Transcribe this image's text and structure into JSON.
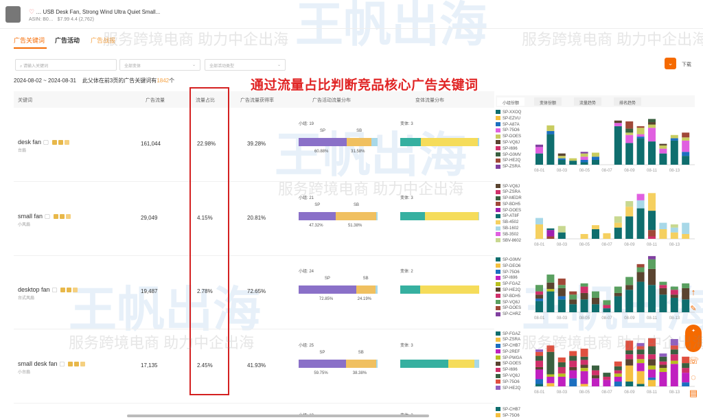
{
  "product": {
    "title": "… USB Desk Fan, Strong Wind Ultra Quiet Small...",
    "asin_label": "ASIN: B0…",
    "price_rating": "$7.99 4.4 (2,762)"
  },
  "tabs": [
    "广告关键词",
    "广告活动",
    "广告战报"
  ],
  "filters": {
    "search_placeholder": "请输入关键词",
    "variant": "全部变体",
    "campaign_type": "全部活动类型"
  },
  "download_label": "下载",
  "summary": {
    "date_range": "2024-08-02 ~ 2024-08-31",
    "text_before": "此父体在前3页的广告关键词有",
    "count": "1842",
    "text_after": "个"
  },
  "annotation": "通过流量占比判断竞品核心广告关键词",
  "columns": [
    "关键词",
    "广告流量",
    "流量占比",
    "广告流量获得率",
    "广告活动流量分布",
    "变体流量分布"
  ],
  "chart_tabs": [
    "小组份额",
    "变体份额",
    "流量趋势",
    "排名趋势"
  ],
  "colors": {
    "accent": "#f56a00",
    "sp": "#8a70c8",
    "sb": "#f0c060",
    "variant_a": "#36b0a0",
    "variant_b": "#f5dc5a",
    "variant_c": "#a8d8e8",
    "highlight": "#d42020"
  },
  "rows": [
    {
      "keyword": "desk fan",
      "sub": "台扇",
      "traffic": "161,044",
      "share": "22.98%",
      "rate": "39.28%",
      "groups": "小组: 19",
      "sp": 60.88,
      "sb": 31.58,
      "sp_label": "60.88%",
      "sb_label": "31.58%",
      "variants": "变体: 3",
      "vshare": [
        26,
        72,
        2
      ]
    },
    {
      "keyword": "small fan",
      "sub": "小风扇",
      "traffic": "29,049",
      "share": "4.15%",
      "rate": "20.81%",
      "groups": "小组: 21",
      "sp": 47.32,
      "sb": 51.38,
      "sp_label": "47.32%",
      "sb_label": "51.38%",
      "variants": "变体: 3",
      "vshare": [
        31,
        68,
        1
      ]
    },
    {
      "keyword": "desktop fan",
      "sub": "台式风扇",
      "traffic": "19,487",
      "share": "2.78%",
      "rate": "72.65%",
      "groups": "小组: 24",
      "sp": 72.85,
      "sb": 24.19,
      "sp_label": "72.85%",
      "sb_label": "24.19%",
      "variants": "变体: 2",
      "vshare": [
        25,
        75,
        0
      ]
    },
    {
      "keyword": "small desk fan",
      "sub": "小台扇",
      "traffic": "17,135",
      "share": "2.45%",
      "rate": "41.93%",
      "groups": "小组: 25",
      "sp": 59.75,
      "sb": 38.38,
      "sp_label": "59.75%",
      "sb_label": "38.38%",
      "variants": "变体: 3",
      "vshare": [
        61,
        33,
        6
      ]
    }
  ],
  "partial_row": {
    "groups": "小组: 19",
    "variants": "变体: 3",
    "legend": [
      "SP-CHB7",
      "SP-75O6"
    ]
  },
  "chart_data": [
    {
      "type": "bar",
      "stacked": true,
      "x": [
        "08-01",
        "08-02",
        "08-03",
        "08-04",
        "08-05",
        "08-06",
        "08-07",
        "08-08",
        "08-09",
        "08-10",
        "08-11",
        "08-12",
        "08-13",
        "08-14"
      ],
      "xticks": [
        "08-01",
        "08-03",
        "08-05",
        "08-07",
        "08-09",
        "08-11",
        "08-13"
      ],
      "legend": [
        "SP-XXOQ",
        "SP-EZVU",
        "SP-A87A",
        "SP-75O6",
        "SP-DOES",
        "SP-VQ8J",
        "SP-I696",
        "SP-G0MV",
        "SP-HE2Q",
        "SP-ZSRA"
      ],
      "palette": [
        "#0f6e6e",
        "#f5c040",
        "#1c6fc0",
        "#e060e0",
        "#c8cc60",
        "#5a4430",
        "#d0306a",
        "#3a6040",
        "#a04838",
        "#8040a0"
      ],
      "stacks": [
        [
          14,
          0,
          0,
          8,
          0,
          0,
          0,
          0,
          0,
          3
        ],
        [
          38,
          0,
          4,
          0,
          7,
          0,
          0,
          0,
          0,
          0
        ],
        [
          6,
          0,
          2,
          0,
          3,
          3,
          0,
          0,
          0,
          0
        ],
        [
          5,
          0,
          0,
          0,
          3,
          0,
          0,
          0,
          0,
          0
        ],
        [
          3,
          0,
          3,
          4,
          4,
          0,
          0,
          0,
          0,
          2
        ],
        [
          6,
          0,
          4,
          0,
          5,
          0,
          0,
          0,
          0,
          0
        ],
        [
          0,
          0,
          0,
          0,
          0,
          0,
          0,
          0,
          0,
          0
        ],
        [
          48,
          0,
          0,
          4,
          0,
          3,
          0,
          0,
          0,
          0
        ],
        [
          27,
          0,
          0,
          10,
          3,
          0,
          0,
          5,
          9,
          0
        ],
        [
          33,
          0,
          2,
          3,
          8,
          0,
          0,
          0,
          2,
          0
        ],
        [
          29,
          0,
          0,
          17,
          4,
          3,
          0,
          4,
          0,
          0
        ],
        [
          14,
          0,
          0,
          6,
          4,
          2,
          0,
          0,
          0,
          0
        ],
        [
          30,
          0,
          3,
          0,
          4,
          0,
          0,
          0,
          0,
          0
        ],
        [
          11,
          0,
          5,
          14,
          4,
          0,
          0,
          0,
          6,
          0
        ]
      ]
    },
    {
      "type": "bar",
      "stacked": true,
      "x": [
        "08-01",
        "08-02",
        "08-03",
        "08-04",
        "08-05",
        "08-06",
        "08-07",
        "08-08",
        "08-09",
        "08-10",
        "08-11",
        "08-12",
        "08-13",
        "08-14"
      ],
      "xticks": [
        "08-01",
        "08-03",
        "08-05",
        "08-07",
        "08-09",
        "08-11",
        "08-13"
      ],
      "legend": [
        "SP-VQ8J",
        "SP-ZSRA",
        "SP-MEDR",
        "SP-BDH5",
        "SP-DOES",
        "SP-AT8F",
        "SB-4502",
        "SB-1602",
        "SB-3502",
        "SBV-8602"
      ],
      "palette": [
        "#5a4430",
        "#d0306a",
        "#3a6040",
        "#a04838",
        "#a020b0",
        "#0f6e6e",
        "#f5d060",
        "#a8d8e8",
        "#e060e0",
        "#c8d890"
      ],
      "stacks": [
        [
          0,
          0,
          0,
          0,
          0,
          0,
          18,
          8,
          0,
          0
        ],
        [
          0,
          0,
          0,
          3,
          8,
          2,
          0,
          0,
          0,
          0
        ],
        [
          0,
          0,
          0,
          0,
          0,
          8,
          0,
          0,
          0,
          8
        ],
        [
          0,
          0,
          0,
          0,
          0,
          0,
          0,
          0,
          0,
          0
        ],
        [
          0,
          0,
          0,
          0,
          0,
          0,
          6,
          0,
          0,
          0
        ],
        [
          0,
          0,
          0,
          0,
          0,
          12,
          5,
          0,
          0,
          0
        ],
        [
          0,
          0,
          0,
          0,
          0,
          0,
          7,
          0,
          0,
          0
        ],
        [
          0,
          0,
          0,
          0,
          0,
          14,
          6,
          0,
          0,
          8
        ],
        [
          0,
          0,
          0,
          0,
          0,
          28,
          12,
          0,
          0,
          7
        ],
        [
          0,
          0,
          0,
          0,
          0,
          38,
          0,
          10,
          8,
          0
        ],
        [
          0,
          3,
          0,
          8,
          0,
          24,
          22,
          0,
          0,
          0
        ],
        [
          0,
          0,
          0,
          0,
          0,
          0,
          12,
          8,
          0,
          0
        ],
        [
          0,
          0,
          0,
          0,
          0,
          0,
          8,
          6,
          0,
          4
        ],
        [
          0,
          0,
          0,
          0,
          0,
          0,
          6,
          14,
          0,
          0
        ]
      ]
    },
    {
      "type": "bar",
      "stacked": true,
      "x": [
        "08-01",
        "08-02",
        "08-03",
        "08-04",
        "08-05",
        "08-06",
        "08-07",
        "08-08",
        "08-09",
        "08-10",
        "08-11",
        "08-12",
        "08-13",
        "08-14"
      ],
      "xticks": [
        "08-01",
        "08-03",
        "08-05",
        "08-07",
        "08-09",
        "08-11",
        "08-13"
      ],
      "legend": [
        "SP-G0MV",
        "SP-DEO6",
        "SP-75O6",
        "SP-I696",
        "SP-FGAZ",
        "SP-HE2Q",
        "SP-BDH5",
        "SP-VQ8J",
        "SP-DOES",
        "SP-CHRZ"
      ],
      "palette": [
        "#0f6e6e",
        "#f5c040",
        "#1c6fc0",
        "#c020c0",
        "#b8c020",
        "#5a4430",
        "#d0306a",
        "#5aa060",
        "#a04838",
        "#8040a0"
      ],
      "stacks": [
        [
          14,
          0,
          3,
          0,
          0,
          5,
          4,
          8,
          0,
          0
        ],
        [
          26,
          0,
          0,
          0,
          3,
          8,
          0,
          10,
          0,
          0
        ],
        [
          16,
          0,
          4,
          0,
          0,
          10,
          0,
          4,
          8,
          0
        ],
        [
          10,
          0,
          0,
          0,
          0,
          6,
          0,
          6,
          4,
          0
        ],
        [
          16,
          0,
          0,
          0,
          0,
          8,
          8,
          4,
          0,
          0
        ],
        [
          10,
          0,
          0,
          0,
          0,
          8,
          0,
          8,
          0,
          0
        ],
        [
          5,
          0,
          0,
          0,
          0,
          0,
          4,
          6,
          0,
          0
        ],
        [
          20,
          0,
          0,
          0,
          0,
          4,
          0,
          8,
          0,
          0
        ],
        [
          28,
          0,
          0,
          0,
          0,
          6,
          0,
          10,
          0,
          0
        ],
        [
          38,
          0,
          0,
          0,
          0,
          12,
          0,
          6,
          4,
          0
        ],
        [
          34,
          0,
          0,
          0,
          0,
          20,
          0,
          12,
          0,
          4
        ],
        [
          22,
          0,
          0,
          0,
          0,
          8,
          4,
          4,
          0,
          0
        ],
        [
          18,
          0,
          0,
          0,
          0,
          4,
          6,
          4,
          0,
          0
        ],
        [
          16,
          0,
          0,
          0,
          0,
          14,
          0,
          6,
          0,
          0
        ]
      ]
    },
    {
      "type": "bar",
      "stacked": true,
      "x": [
        "08-01",
        "08-02",
        "08-03",
        "08-04",
        "08-05",
        "08-06",
        "08-07",
        "08-08",
        "08-09",
        "08-10",
        "08-11",
        "08-12",
        "08-13",
        "08-14"
      ],
      "xticks": [
        "08-01",
        "08-03",
        "08-05",
        "08-07",
        "08-09",
        "08-11",
        "08-13"
      ],
      "legend": [
        "SP-FGAZ",
        "SP-ZSRA",
        "SP-CHB7",
        "SP-2REF",
        "SP-PWGA",
        "SP-DOES",
        "SP-I696",
        "SP-VQ8J",
        "SP-75O6",
        "SP-HE2Q"
      ],
      "palette": [
        "#0f6e6e",
        "#f5c040",
        "#1c6fc0",
        "#c020c0",
        "#b8c020",
        "#5a4430",
        "#d0306a",
        "#3a6040",
        "#e05040",
        "#9060c0"
      ],
      "stacks": [
        [
          3,
          0,
          6,
          12,
          0,
          3,
          8,
          6,
          5,
          3
        ],
        [
          0,
          4,
          0,
          8,
          3,
          0,
          0,
          28,
          8,
          0
        ],
        [
          0,
          0,
          0,
          12,
          4,
          0,
          8,
          6,
          6,
          0
        ],
        [
          0,
          0,
          10,
          10,
          0,
          4,
          8,
          6,
          6,
          0
        ],
        [
          0,
          3,
          0,
          16,
          4,
          4,
          6,
          4,
          10,
          0
        ],
        [
          0,
          0,
          0,
          10,
          0,
          4,
          6,
          6,
          0,
          0
        ],
        [
          0,
          0,
          0,
          8,
          0,
          0,
          4,
          5,
          0,
          0
        ],
        [
          0,
          0,
          6,
          6,
          4,
          0,
          4,
          5,
          6,
          0
        ],
        [
          6,
          20,
          0,
          0,
          0,
          8,
          6,
          5,
          12,
          0
        ],
        [
          3,
          16,
          0,
          10,
          5,
          0,
          6,
          6,
          4,
          4
        ],
        [
          0,
          8,
          3,
          10,
          5,
          8,
          6,
          10,
          10,
          0
        ],
        [
          0,
          0,
          0,
          18,
          5,
          4,
          4,
          6,
          0,
          4
        ],
        [
          0,
          0,
          0,
          28,
          4,
          0,
          8,
          6,
          5,
          8
        ],
        [
          0,
          0,
          5,
          12,
          0,
          0,
          6,
          6,
          8,
          0
        ]
      ]
    }
  ],
  "watermark": {
    "text": "服务跨境电商 助力中企出海",
    "logo": "王帆出海"
  }
}
